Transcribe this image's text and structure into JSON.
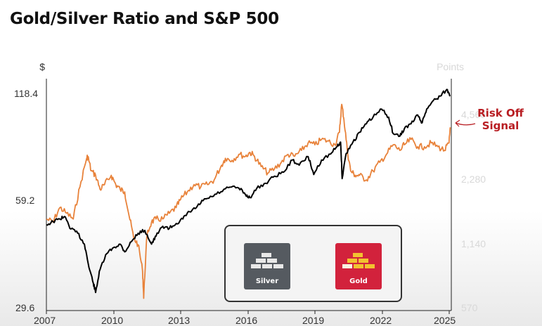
{
  "title": "Gold/Silver Ratio and S&P 500",
  "annotation": {
    "line1": "Risk Off",
    "line2": "Signal"
  },
  "legend": {
    "silver_label": "Silver",
    "gold_label": "Gold"
  },
  "colors": {
    "ratio_line": "#e8823a",
    "sp500_line": "#000000",
    "annotation": "#b81d22",
    "silver_tile": "#555a60",
    "gold_tile": "#d2223c"
  },
  "chart_data": {
    "type": "line",
    "title": "Gold/Silver Ratio and S&P 500",
    "left_axis": {
      "unit": "$",
      "ticks": [
        "118.4",
        "59.2",
        "29.6"
      ],
      "ylim": [
        29.6,
        118.4
      ],
      "scale": "log"
    },
    "right_axis": {
      "unit": "Points",
      "ticks": [
        "4,560",
        "2,280",
        "1,140",
        "570"
      ],
      "ylim": [
        570,
        6500
      ],
      "scale": "log"
    },
    "x_ticks": [
      "2007",
      "2010",
      "2013",
      "2016",
      "2019",
      "2022",
      "2025"
    ],
    "xlim": [
      2007,
      2025.1
    ],
    "series": [
      {
        "name": "Gold",
        "axis": "left",
        "x": [
          2007.0,
          2007.3,
          2007.6,
          2007.9,
          2008.2,
          2008.5,
          2008.8,
          2008.85,
          2009.0,
          2009.2,
          2009.4,
          2009.6,
          2009.9,
          2010.1,
          2010.3,
          2010.5,
          2010.7,
          2010.9,
          2011.1,
          2011.3,
          2011.35,
          2011.5,
          2011.7,
          2011.9,
          2012.2,
          2012.5,
          2012.8,
          2013.0,
          2013.3,
          2013.6,
          2013.9,
          2014.2,
          2014.5,
          2014.8,
          2015.0,
          2015.3,
          2015.6,
          2015.9,
          2016.1,
          2016.3,
          2016.6,
          2016.9,
          2017.2,
          2017.5,
          2017.8,
          2018.1,
          2018.4,
          2018.7,
          2019.0,
          2019.3,
          2019.6,
          2019.9,
          2020.1,
          2020.2,
          2020.3,
          2020.45,
          2020.6,
          2020.8,
          2021.0,
          2021.3,
          2021.6,
          2021.9,
          2022.2,
          2022.5,
          2022.8,
          2023.0,
          2023.3,
          2023.6,
          2023.9,
          2024.2,
          2024.5,
          2024.8,
          2025.0,
          2025.05
        ],
        "y": [
          53,
          52,
          57,
          55,
          53,
          65,
          78,
          79,
          72,
          70,
          64,
          66,
          70,
          66,
          64,
          63,
          54,
          47,
          45,
          38,
          32,
          48,
          52,
          53,
          53,
          55,
          57,
          60,
          63,
          66,
          65,
          66,
          68,
          74,
          78,
          77,
          80,
          79,
          81,
          79,
          74,
          71,
          73,
          76,
          80,
          79,
          82,
          86,
          85,
          88,
          87,
          85,
          92,
          110,
          100,
          82,
          72,
          70,
          70,
          68,
          72,
          76,
          80,
          85,
          82,
          85,
          88,
          84,
          84,
          86,
          84,
          82,
          86,
          95
        ]
      },
      {
        "name": "S&P 500",
        "axis": "right",
        "x": [
          2007.0,
          2007.3,
          2007.6,
          2007.8,
          2008.1,
          2008.4,
          2008.7,
          2008.9,
          2009.1,
          2009.2,
          2009.4,
          2009.7,
          2010.0,
          2010.3,
          2010.5,
          2010.8,
          2011.1,
          2011.4,
          2011.7,
          2011.9,
          2012.2,
          2012.5,
          2012.8,
          2013.1,
          2013.4,
          2013.7,
          2014.0,
          2014.4,
          2014.8,
          2015.2,
          2015.6,
          2015.9,
          2016.1,
          2016.4,
          2016.8,
          2017.2,
          2017.6,
          2018.0,
          2018.3,
          2018.7,
          2018.95,
          2019.3,
          2019.7,
          2020.0,
          2020.15,
          2020.22,
          2020.4,
          2020.7,
          2021.0,
          2021.3,
          2021.6,
          2021.99,
          2022.3,
          2022.5,
          2022.8,
          2023.0,
          2023.3,
          2023.6,
          2023.8,
          2024.0,
          2024.3,
          2024.6,
          2024.9,
          2025.05
        ],
        "y": [
          1410,
          1460,
          1500,
          1540,
          1350,
          1290,
          1150,
          900,
          760,
          690,
          880,
          1040,
          1110,
          1150,
          1060,
          1180,
          1290,
          1330,
          1150,
          1250,
          1390,
          1360,
          1430,
          1500,
          1620,
          1690,
          1820,
          1900,
          2000,
          2100,
          2080,
          1940,
          1880,
          2070,
          2190,
          2360,
          2460,
          2800,
          2650,
          2900,
          2400,
          2800,
          2980,
          3230,
          3380,
          2300,
          3000,
          3380,
          3750,
          4100,
          4400,
          4790,
          4400,
          3700,
          3600,
          3900,
          4100,
          4500,
          4150,
          4800,
          5250,
          5500,
          5900,
          5500
        ]
      }
    ]
  }
}
